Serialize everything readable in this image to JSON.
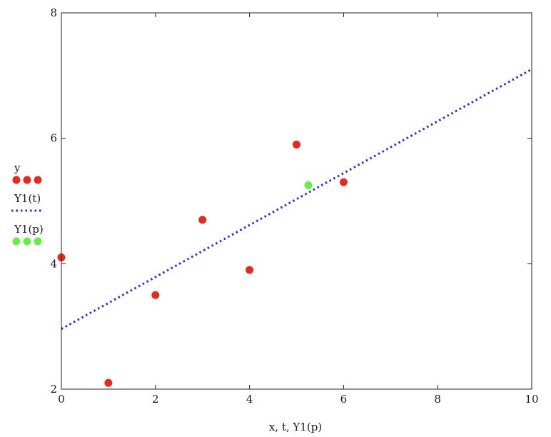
{
  "chart_data": {
    "type": "scatter",
    "xlabel": "x, t, Y1(p)",
    "ylabel": "",
    "xlim": [
      0,
      10
    ],
    "ylim": [
      2,
      8
    ],
    "grid": false,
    "x_ticks": [
      {
        "value": 0,
        "label": "0"
      },
      {
        "value": 2,
        "label": "2"
      },
      {
        "value": 4,
        "label": "4"
      },
      {
        "value": 6,
        "label": "6"
      },
      {
        "value": 8,
        "label": "8"
      },
      {
        "value": 10,
        "label": "10"
      }
    ],
    "y_ticks": [
      {
        "value": 2,
        "label": "2"
      },
      {
        "value": 4,
        "label": "4"
      },
      {
        "value": 6,
        "label": "6"
      },
      {
        "value": 8,
        "label": "8"
      }
    ],
    "legend_placement": "left",
    "series": [
      {
        "name": "y",
        "kind": "points",
        "color": "#e8291c",
        "points": [
          [
            0,
            4.1
          ],
          [
            1,
            2.1
          ],
          [
            2,
            3.5
          ],
          [
            3,
            4.7
          ],
          [
            4,
            3.9
          ],
          [
            5,
            5.9
          ],
          [
            6,
            5.3
          ]
        ]
      },
      {
        "name": "Y1(t)",
        "kind": "dotted-line",
        "color": "#1f2fe0",
        "points": [
          [
            0,
            2.96
          ],
          [
            10,
            7.1
          ]
        ]
      },
      {
        "name": "Y1(p)",
        "kind": "points",
        "color": "#66ee44",
        "points": [
          [
            5.25,
            5.25
          ]
        ]
      }
    ]
  }
}
